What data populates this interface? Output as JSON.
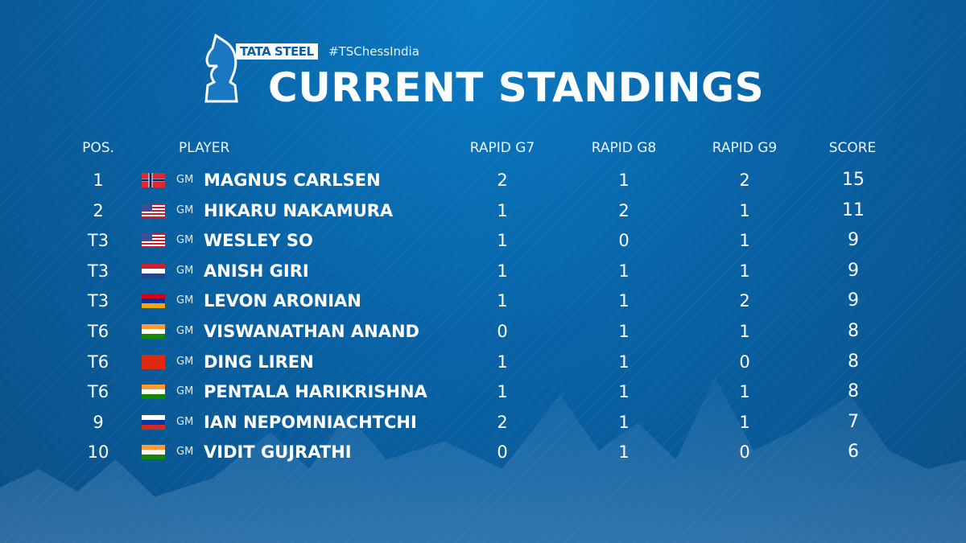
{
  "header": {
    "brand": "TATA STEEL",
    "hashtag": "#TSChessIndia",
    "title": "CURRENT STANDINGS"
  },
  "columns": {
    "pos": "POS.",
    "player": "PLAYER",
    "g7": "RAPID G7",
    "g8": "RAPID G8",
    "g9": "RAPID G9",
    "score": "SCORE"
  },
  "rows": [
    {
      "pos": "1",
      "flag": "norway",
      "title": "GM",
      "name": "MAGNUS CARLSEN",
      "g7": "2",
      "g8": "1",
      "g9": "2",
      "score": "15"
    },
    {
      "pos": "2",
      "flag": "usa",
      "title": "GM",
      "name": "HIKARU NAKAMURA",
      "g7": "1",
      "g8": "2",
      "g9": "1",
      "score": "11"
    },
    {
      "pos": "T3",
      "flag": "usa",
      "title": "GM",
      "name": "WESLEY SO",
      "g7": "1",
      "g8": "0",
      "g9": "1",
      "score": "9"
    },
    {
      "pos": "T3",
      "flag": "netherlands",
      "title": "GM",
      "name": "ANISH GIRI",
      "g7": "1",
      "g8": "1",
      "g9": "1",
      "score": "9"
    },
    {
      "pos": "T3",
      "flag": "armenia",
      "title": "GM",
      "name": "LEVON ARONIAN",
      "g7": "1",
      "g8": "1",
      "g9": "2",
      "score": "9"
    },
    {
      "pos": "T6",
      "flag": "india",
      "title": "GM",
      "name": "VISWANATHAN ANAND",
      "g7": "0",
      "g8": "1",
      "g9": "1",
      "score": "8"
    },
    {
      "pos": "T6",
      "flag": "china",
      "title": "GM",
      "name": "DING LIREN",
      "g7": "1",
      "g8": "1",
      "g9": "0",
      "score": "8"
    },
    {
      "pos": "T6",
      "flag": "india",
      "title": "GM",
      "name": "PENTALA HARIKRISHNA",
      "g7": "1",
      "g8": "1",
      "g9": "1",
      "score": "8"
    },
    {
      "pos": "9",
      "flag": "russia",
      "title": "GM",
      "name": "IAN NEPOMNIACHTCHI",
      "g7": "2",
      "g8": "1",
      "g9": "1",
      "score": "7"
    },
    {
      "pos": "10",
      "flag": "india",
      "title": "GM",
      "name": "VIDIT GUJRATHI",
      "g7": "0",
      "g8": "1",
      "g9": "0",
      "score": "6"
    }
  ]
}
